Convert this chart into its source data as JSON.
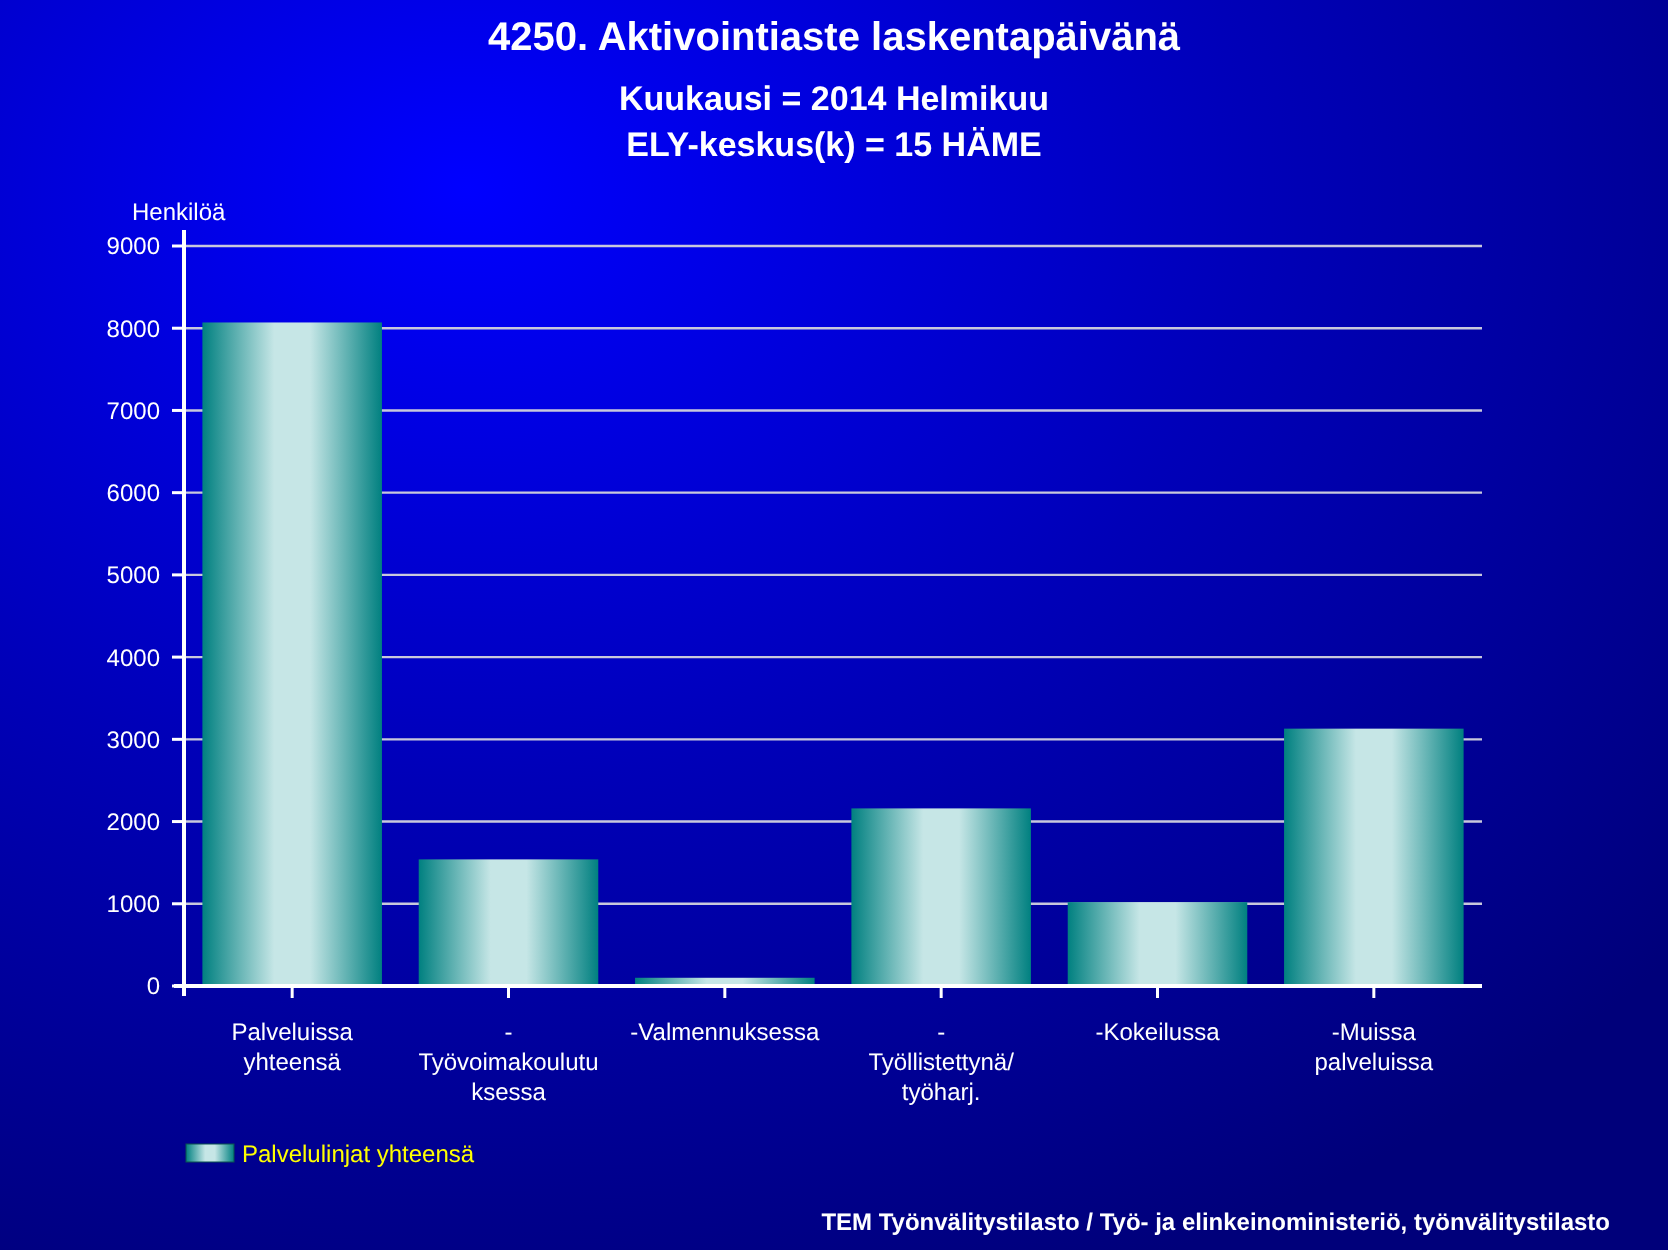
{
  "chart_data": {
    "type": "bar",
    "title": "4250. Aktivointiaste laskentapäivänä",
    "subtitle": "Kuukausi = 2014 Helmikuu\nELY-keskus(k) = 15 HÄME",
    "ylabel": "Henkilöä",
    "categories": [
      "Palveluissa yhteensä",
      "-Työvoimakoulutuksessa",
      "-Valmennuksessa",
      "-Työllistettynä/työharj.",
      "-Kokeilussa",
      "-Muissa palveluissa"
    ],
    "series": [
      {
        "name": "Palvelulinjat yhteensä",
        "color": "#008080",
        "values": [
          8070,
          1540,
          100,
          2160,
          1020,
          3130
        ]
      }
    ],
    "ylim": [
      0,
      9000
    ],
    "yticks": [
      0,
      1000,
      2000,
      3000,
      4000,
      5000,
      6000,
      7000,
      8000,
      9000
    ],
    "grid": "y",
    "legend": "bottom left",
    "annotations": [
      "TEM Työnvälitystilasto / Työ- ja elinkeinoministeriö, työnvälitystilasto"
    ]
  }
}
